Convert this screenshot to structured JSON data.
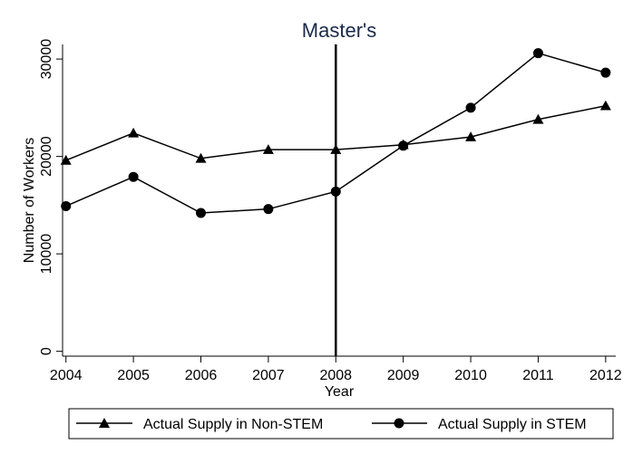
{
  "chart_data": {
    "type": "line",
    "title": "Master's",
    "xlabel": "Year",
    "ylabel": "Number of Workers",
    "x": [
      2004,
      2005,
      2006,
      2007,
      2008,
      2009,
      2010,
      2011,
      2012
    ],
    "xlim": [
      2003.95,
      2012.15
    ],
    "ylim": [
      -500,
      31500
    ],
    "yticks": [
      0,
      10000,
      20000,
      30000
    ],
    "ytick_labels": [
      "0",
      "10000",
      "20000",
      "30000"
    ],
    "xtick_labels": [
      "2004",
      "2005",
      "2006",
      "2007",
      "2008",
      "2009",
      "2010",
      "2011",
      "2012"
    ],
    "vline_x": 2008,
    "grid": false,
    "legend_position": "bottom",
    "series": [
      {
        "name": "Actual Supply in Non-STEM",
        "marker": "triangle",
        "color": "#000000",
        "values": [
          19600,
          22400,
          19800,
          20700,
          20700,
          21200,
          22000,
          23800,
          25200
        ]
      },
      {
        "name": "Actual Supply in STEM",
        "marker": "circle",
        "color": "#000000",
        "values": [
          14900,
          17900,
          14200,
          14600,
          16400,
          21100,
          25000,
          30600,
          28600
        ]
      }
    ]
  }
}
